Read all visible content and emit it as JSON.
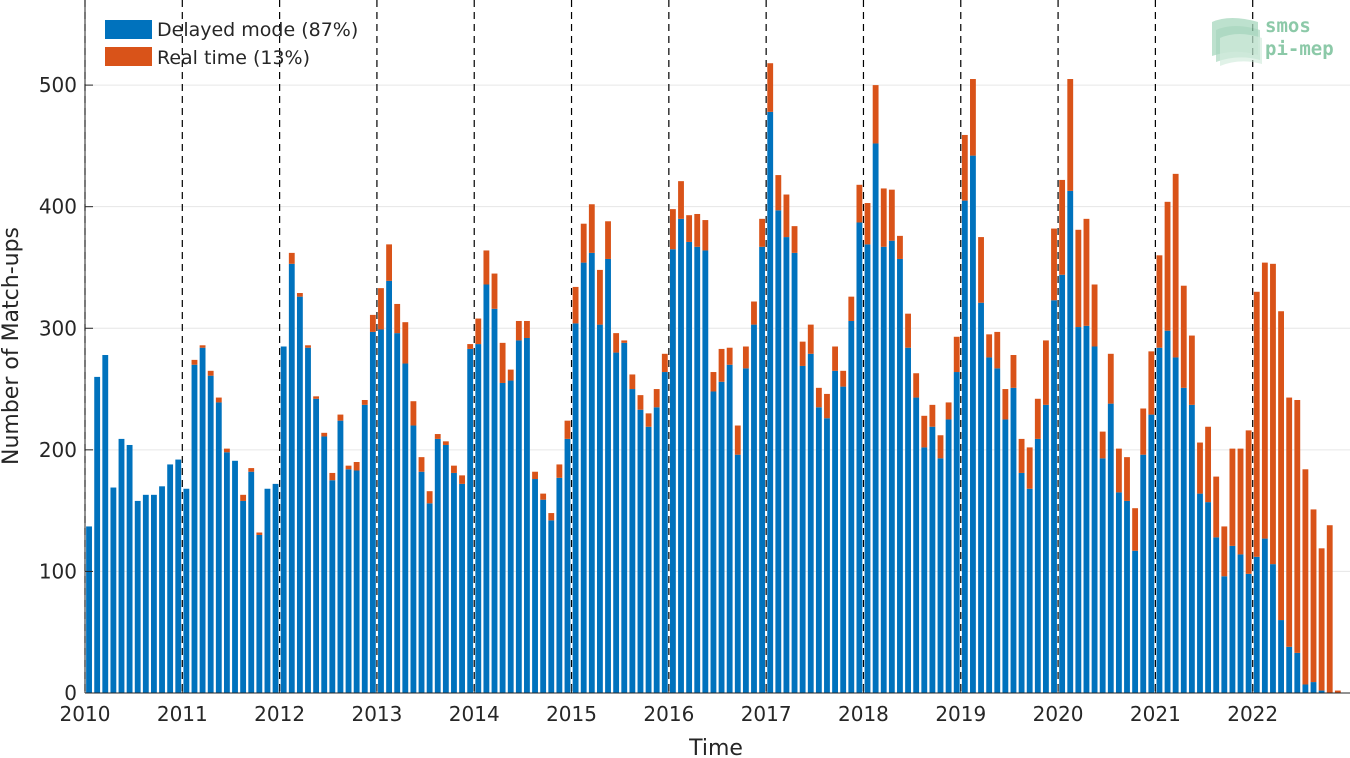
{
  "chart_data": {
    "type": "bar",
    "stacked": true,
    "xlabel": "Time",
    "ylabel": "Number of Match-ups",
    "ylim": [
      0,
      570
    ],
    "yticks": [
      0,
      100,
      200,
      300,
      400,
      500
    ],
    "xticks": [
      "2010",
      "2011",
      "2012",
      "2013",
      "2014",
      "2015",
      "2016",
      "2017",
      "2018",
      "2019",
      "2020",
      "2021",
      "2022"
    ],
    "xlim": [
      "2010-01",
      "2023-01"
    ],
    "grid": "horizontal",
    "year_separators": "dashed black vertical lines",
    "legend_position": "top-left",
    "months_start": "2010-01",
    "series": [
      {
        "name": "Delayed mode (87%)",
        "color": "#0072BD",
        "values": [
          137,
          260,
          278,
          169,
          209,
          204,
          158,
          163,
          163,
          170,
          188,
          192,
          168,
          270,
          284,
          261,
          239,
          198,
          191,
          158,
          182,
          130,
          168,
          172,
          285,
          353,
          326,
          284,
          242,
          211,
          175,
          224,
          184,
          183,
          237,
          297,
          299,
          339,
          296,
          271,
          220,
          182,
          156,
          209,
          204,
          181,
          172,
          283,
          287,
          336,
          316,
          255,
          257,
          290,
          292,
          176,
          159,
          142,
          177,
          209,
          304,
          354,
          362,
          303,
          357,
          280,
          288,
          250,
          233,
          219,
          235,
          264,
          365,
          390,
          371,
          367,
          364,
          248,
          256,
          270,
          196,
          267,
          303,
          367,
          478,
          397,
          375,
          362,
          269,
          279,
          235,
          226,
          265,
          252,
          306,
          387,
          369,
          452,
          367,
          372,
          357,
          284,
          243,
          202,
          219,
          193,
          225,
          264,
          405,
          442,
          321,
          276,
          267,
          225,
          251,
          181,
          168,
          209,
          237,
          323,
          344,
          413,
          301,
          302,
          285,
          193,
          238,
          165,
          158,
          117,
          196,
          229,
          284,
          298,
          276,
          251,
          237,
          164,
          157,
          128,
          96,
          121,
          114,
          98,
          112,
          127,
          106,
          60,
          38,
          33,
          7,
          9,
          2,
          0,
          0,
          0
        ],
        "approximate": true
      },
      {
        "name": "Real time (13%)",
        "color": "#D95319",
        "values": [
          0,
          0,
          0,
          0,
          0,
          0,
          0,
          0,
          0,
          0,
          0,
          0,
          0,
          4,
          2,
          4,
          4,
          3,
          0,
          5,
          3,
          2,
          0,
          0,
          0,
          9,
          3,
          2,
          2,
          3,
          6,
          5,
          3,
          7,
          4,
          14,
          34,
          30,
          24,
          34,
          20,
          12,
          10,
          4,
          3,
          6,
          7,
          4,
          21,
          28,
          29,
          33,
          9,
          16,
          14,
          6,
          5,
          6,
          11,
          15,
          30,
          32,
          40,
          45,
          31,
          16,
          2,
          12,
          12,
          11,
          15,
          15,
          33,
          31,
          22,
          27,
          25,
          16,
          27,
          14,
          24,
          18,
          19,
          23,
          40,
          29,
          35,
          22,
          20,
          24,
          16,
          20,
          20,
          13,
          20,
          31,
          34,
          48,
          48,
          42,
          19,
          28,
          20,
          26,
          18,
          19,
          14,
          29,
          54,
          63,
          54,
          19,
          30,
          25,
          27,
          28,
          34,
          33,
          53,
          59,
          78,
          92,
          80,
          88,
          51,
          22,
          41,
          36,
          36,
          35,
          38,
          52,
          76,
          106,
          151,
          84,
          57,
          42,
          62,
          50,
          41,
          80,
          87,
          118,
          218,
          227,
          247,
          254,
          205,
          208,
          177,
          142,
          117,
          138,
          2,
          0
        ],
        "approximate": true
      }
    ]
  },
  "logo": {
    "line1": "smos",
    "line2": "pi-mep"
  }
}
